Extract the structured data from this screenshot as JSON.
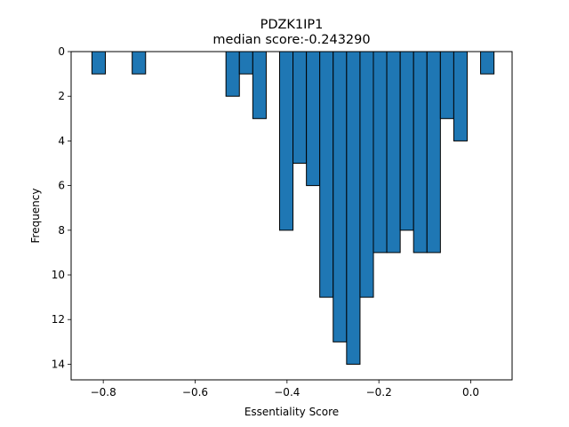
{
  "chart_data": {
    "type": "bar",
    "subtype": "histogram",
    "title": "PDZK1IP1",
    "subtitle": "median score:-0.243290",
    "xlabel": "Essentiality Score",
    "ylabel": "Frequency",
    "xlim": [
      -0.87,
      0.09
    ],
    "ylim": [
      0,
      14.7
    ],
    "y_inverted": true,
    "bin_width": 0.0292,
    "bar_color": "#1f77b4",
    "edge_color": "#000000",
    "x_ticks": [
      -0.8,
      -0.6,
      -0.4,
      -0.2,
      0.0
    ],
    "x_tick_labels": [
      "−0.8",
      "−0.6",
      "−0.4",
      "−0.2",
      "0.0"
    ],
    "y_ticks": [
      0,
      2,
      4,
      6,
      8,
      10,
      12,
      14
    ],
    "y_tick_labels": [
      "0",
      "2",
      "4",
      "6",
      "8",
      "10",
      "12",
      "14"
    ],
    "bins": [
      {
        "x": -0.8247,
        "count": 1
      },
      {
        "x": -0.7371,
        "count": 1
      },
      {
        "x": -0.5329,
        "count": 2
      },
      {
        "x": -0.5037,
        "count": 1
      },
      {
        "x": -0.4745,
        "count": 3
      },
      {
        "x": -0.4162,
        "count": 8
      },
      {
        "x": -0.387,
        "count": 5
      },
      {
        "x": -0.3578,
        "count": 6
      },
      {
        "x": -0.3287,
        "count": 11
      },
      {
        "x": -0.2995,
        "count": 13
      },
      {
        "x": -0.2703,
        "count": 14
      },
      {
        "x": -0.2411,
        "count": 11
      },
      {
        "x": -0.212,
        "count": 9
      },
      {
        "x": -0.1828,
        "count": 9
      },
      {
        "x": -0.1536,
        "count": 8
      },
      {
        "x": -0.1245,
        "count": 9
      },
      {
        "x": -0.0953,
        "count": 9
      },
      {
        "x": -0.0661,
        "count": 3
      },
      {
        "x": -0.037,
        "count": 4
      },
      {
        "x": 0.0214,
        "count": 1
      }
    ]
  }
}
